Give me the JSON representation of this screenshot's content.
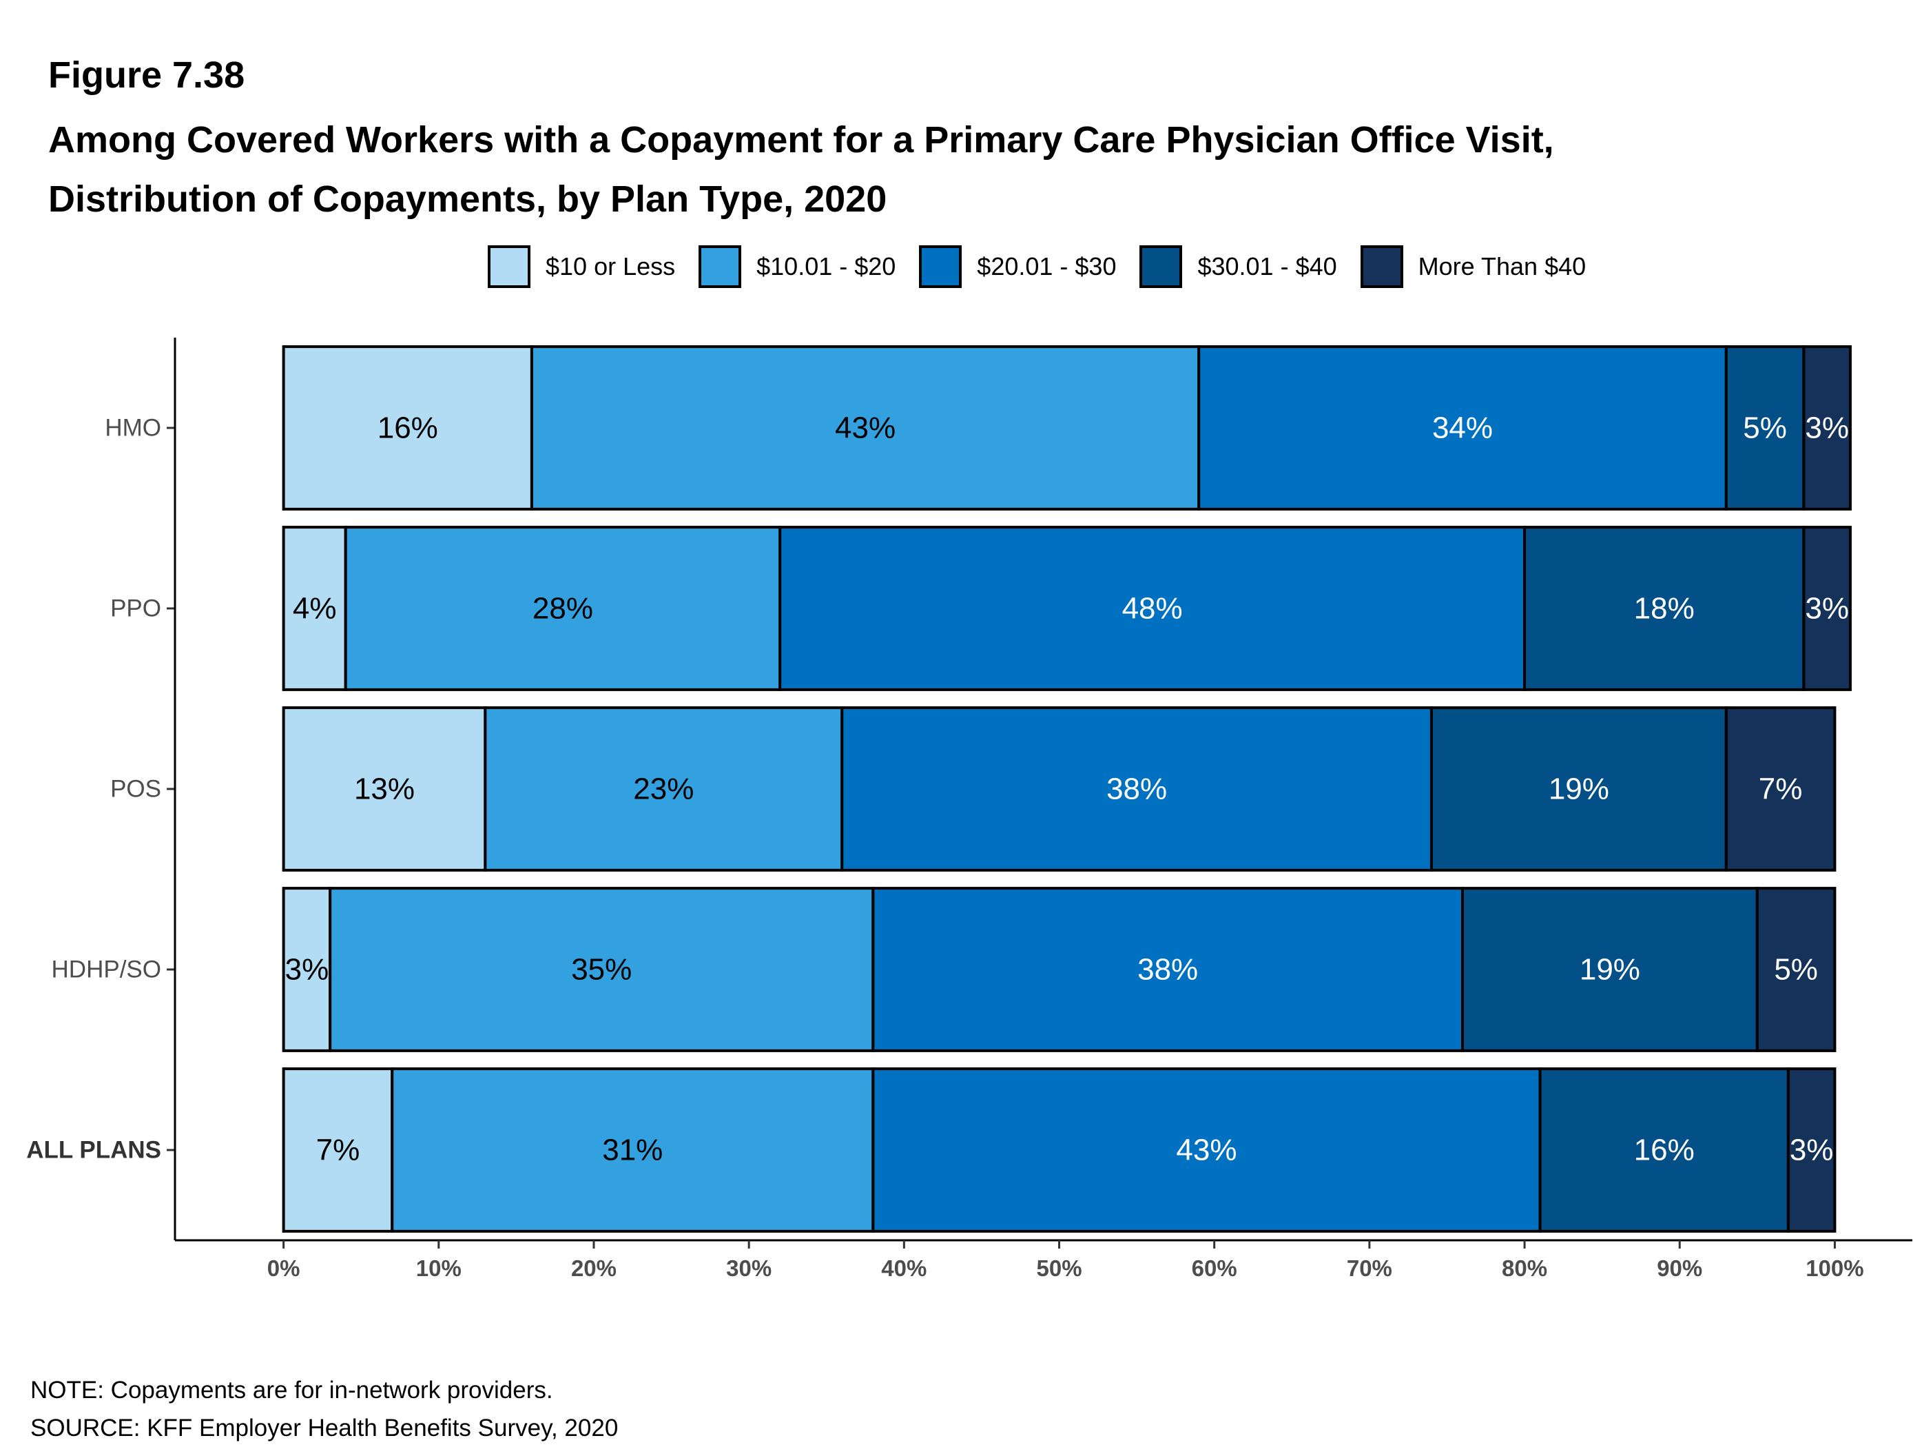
{
  "figure_label": "Figure 7.38",
  "title_lines": [
    "Among Covered Workers with a Copayment for a Primary Care Physician Office Visit,",
    "Distribution of Copayments, by Plan Type, 2020"
  ],
  "legend": [
    {
      "label": "$10 or Less",
      "color": "#b1dcf3"
    },
    {
      "label": "$10.01 - $20",
      "color": "#33a1e0"
    },
    {
      "label": "$20.01 - $30",
      "color": "#0071c1"
    },
    {
      "label": "$30.01 - $40",
      "color": "#034f88"
    },
    {
      "label": "More Than $40",
      "color": "#15325a"
    }
  ],
  "chart_data": {
    "type": "bar",
    "orientation": "horizontal",
    "stacked": true,
    "categories": [
      "HMO",
      "PPO",
      "POS",
      "HDHP/SO",
      "ALL PLANS"
    ],
    "bold_categories": [
      "ALL PLANS"
    ],
    "series": [
      {
        "name": "$10 or Less",
        "color": "#b1dcf3",
        "label_color": "#000000",
        "values": [
          16,
          4,
          13,
          3,
          7
        ],
        "labels": [
          "16%",
          "4%",
          "13%",
          "3%",
          "7%"
        ]
      },
      {
        "name": "$10.01 - $20",
        "color": "#33a1e0",
        "label_color": "#000000",
        "values": [
          43,
          28,
          23,
          35,
          31
        ],
        "labels": [
          "43%",
          "28%",
          "23%",
          "35%",
          "31%"
        ]
      },
      {
        "name": "$20.01 - $30",
        "color": "#0071c1",
        "label_color": "#ffffff",
        "values": [
          34,
          48,
          38,
          38,
          43
        ],
        "labels": [
          "34%",
          "48%",
          "38%",
          "38%",
          "43%"
        ]
      },
      {
        "name": "$30.01 - $40",
        "color": "#034f88",
        "label_color": "#ffffff",
        "values": [
          5,
          18,
          19,
          19,
          16
        ],
        "labels": [
          "5%",
          "18%",
          "19%",
          "19%",
          "16%"
        ]
      },
      {
        "name": "More Than $40",
        "color": "#15325a",
        "label_color": "#ffffff",
        "values": [
          3,
          3,
          7,
          5,
          3
        ],
        "labels": [
          "3%",
          "3%",
          "7%",
          "5%",
          "3%"
        ]
      }
    ],
    "xlim": [
      -7,
      105
    ],
    "xticks": [
      0,
      10,
      20,
      30,
      40,
      50,
      60,
      70,
      80,
      90,
      100
    ],
    "xtick_labels": [
      "0%",
      "10%",
      "20%",
      "30%",
      "40%",
      "50%",
      "60%",
      "70%",
      "80%",
      "90%",
      "100%"
    ],
    "xlabel": "",
    "ylabel": "",
    "grid": false,
    "legend_position": "top"
  },
  "note": "NOTE: Copayments are for in-network providers.",
  "source": "SOURCE: KFF Employer Health Benefits Survey, 2020"
}
